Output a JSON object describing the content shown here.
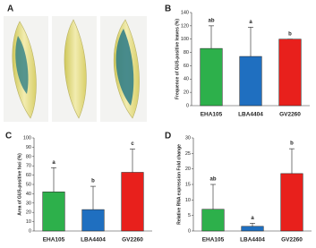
{
  "panel_labels": [
    "A",
    "B",
    "C",
    "D"
  ],
  "chart_data": [
    {
      "type": "bar",
      "y_label": "Frequence of GUS-positive leaves (%)",
      "categories": [
        "EHA105",
        "LBA4404",
        "GV2260"
      ],
      "values": [
        86,
        74,
        100
      ],
      "errors": [
        34,
        44,
        0
      ],
      "annotations": [
        "ab",
        "a",
        "b"
      ],
      "colors": [
        "#2db04b",
        "#1f6fc0",
        "#e8201c"
      ],
      "ylim": [
        0,
        140
      ],
      "yticks": [
        0,
        20,
        40,
        60,
        80,
        100,
        120,
        140
      ]
    },
    {
      "type": "bar",
      "y_label": "Area of GUS-positive foci (%)",
      "categories": [
        "EHA105",
        "LBA4404",
        "GV2260"
      ],
      "values": [
        42,
        23,
        63
      ],
      "errors": [
        26,
        25,
        25
      ],
      "annotations": [
        "a",
        "b",
        "c"
      ],
      "colors": [
        "#2db04b",
        "#1f6fc0",
        "#e8201c"
      ],
      "ylim": [
        0,
        100
      ],
      "yticks": [
        0,
        10,
        20,
        30,
        40,
        50,
        60,
        70,
        80,
        90,
        100
      ]
    },
    {
      "type": "bar",
      "y_label": "Relative RNA expression Fold change",
      "categories": [
        "EHA105",
        "LBA4404",
        "GV2260"
      ],
      "values": [
        7,
        1.5,
        18.5
      ],
      "errors": [
        8,
        1,
        8
      ],
      "annotations": [
        "ab",
        "a",
        "b"
      ],
      "colors": [
        "#2db04b",
        "#1f6fc0",
        "#e8201c"
      ],
      "ylim": [
        0,
        30
      ],
      "yticks": [
        0,
        5,
        10,
        15,
        20,
        25,
        30
      ]
    }
  ]
}
